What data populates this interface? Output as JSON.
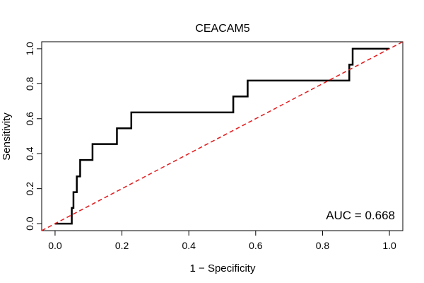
{
  "chart_data": {
    "type": "line",
    "title": "CEACAM5",
    "xlabel": "1 − Specificity",
    "ylabel": "Sensitivity",
    "xlim": [
      -0.04,
      1.04
    ],
    "ylim": [
      -0.04,
      1.04
    ],
    "xticks": [
      {
        "value": 0.0,
        "label": "0.0"
      },
      {
        "value": 0.2,
        "label": "0.2"
      },
      {
        "value": 0.4,
        "label": "0.4"
      },
      {
        "value": 0.6,
        "label": "0.6"
      },
      {
        "value": 0.8,
        "label": "0.8"
      },
      {
        "value": 1.0,
        "label": "1.0"
      }
    ],
    "yticks": [
      {
        "value": 0.0,
        "label": "0.0"
      },
      {
        "value": 0.2,
        "label": "0.2"
      },
      {
        "value": 0.4,
        "label": "0.4"
      },
      {
        "value": 0.6,
        "label": "0.6"
      },
      {
        "value": 0.8,
        "label": "0.8"
      },
      {
        "value": 1.0,
        "label": "1.0"
      }
    ],
    "series": [
      {
        "name": "ROC curve",
        "color": "#000000",
        "style": "solid",
        "x": [
          0.0,
          0.05,
          0.05,
          0.055,
          0.055,
          0.065,
          0.065,
          0.075,
          0.075,
          0.112,
          0.112,
          0.185,
          0.185,
          0.228,
          0.228,
          0.533,
          0.533,
          0.576,
          0.576,
          0.88,
          0.88,
          0.89,
          0.89,
          1.0
        ],
        "y": [
          0.0,
          0.0,
          0.09,
          0.09,
          0.18,
          0.18,
          0.27,
          0.27,
          0.364,
          0.364,
          0.455,
          0.455,
          0.545,
          0.545,
          0.636,
          0.636,
          0.727,
          0.727,
          0.818,
          0.818,
          0.909,
          0.909,
          1.0,
          1.0
        ]
      },
      {
        "name": "reference line",
        "color": "#e41a1c",
        "style": "dashed",
        "x": [
          -0.04,
          1.04
        ],
        "y": [
          -0.04,
          1.04
        ]
      }
    ],
    "annotation": "AUC = 0.668"
  }
}
